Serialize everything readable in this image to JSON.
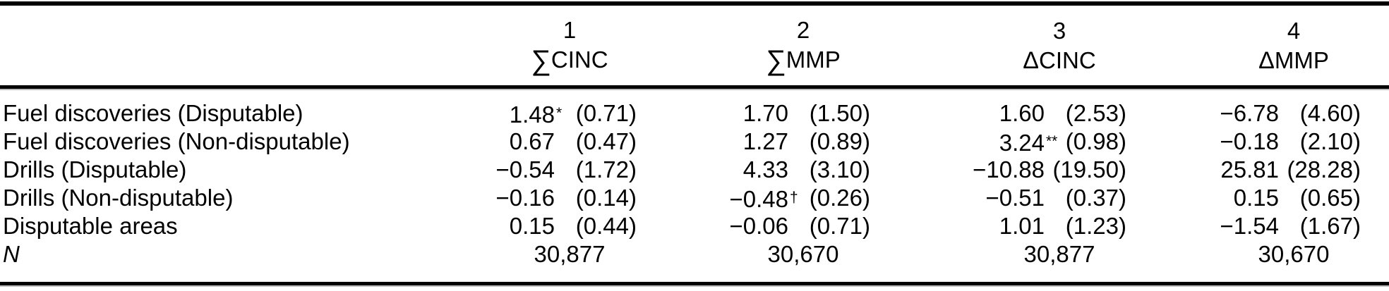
{
  "table": {
    "columns": [
      {
        "number": "1",
        "symbol": "∑",
        "name": "CINC"
      },
      {
        "number": "2",
        "symbol": "∑",
        "name": "MMP"
      },
      {
        "number": "3",
        "symbol": "Δ",
        "name": "CINC"
      },
      {
        "number": "4",
        "symbol": "Δ",
        "name": "MMP"
      }
    ],
    "rows": [
      {
        "label": "Fuel discoveries (Disputable)",
        "cells": [
          {
            "coef": "1.48",
            "sup": "*",
            "se": "(0.71)"
          },
          {
            "coef": "1.70",
            "se": "(1.50)"
          },
          {
            "coef": "1.60",
            "se": "(2.53)"
          },
          {
            "coef": "−6.78",
            "se": "(4.60)"
          }
        ]
      },
      {
        "label": "Fuel discoveries (Non-disputable)",
        "cells": [
          {
            "coef": "0.67",
            "se": "(0.47)"
          },
          {
            "coef": "1.27",
            "se": "(0.89)"
          },
          {
            "coef": "3.24",
            "sup": "**",
            "se": "(0.98)"
          },
          {
            "coef": "−0.18",
            "se": "(2.10)"
          }
        ]
      },
      {
        "label": "Drills (Disputable)",
        "cells": [
          {
            "coef": "−0.54",
            "se": "(1.72)"
          },
          {
            "coef": "4.33",
            "se": "(3.10)"
          },
          {
            "coef": "−10.88",
            "se": "(19.50)"
          },
          {
            "coef": "25.81",
            "se": "(28.28)"
          }
        ]
      },
      {
        "label": "Drills (Non-disputable)",
        "cells": [
          {
            "coef": "−0.16",
            "se": "(0.14)"
          },
          {
            "coef": "−0.48",
            "sup": "†",
            "se": "(0.26)"
          },
          {
            "coef": "−0.51",
            "se": "(0.37)"
          },
          {
            "coef": "0.15",
            "se": "(0.65)"
          }
        ]
      },
      {
        "label": "Disputable areas",
        "cells": [
          {
            "coef": "0.15",
            "se": "(0.44)"
          },
          {
            "coef": "−0.06",
            "se": "(0.71)"
          },
          {
            "coef": "1.01",
            "se": "(1.23)"
          },
          {
            "coef": "−1.54",
            "se": "(1.67)"
          }
        ]
      }
    ],
    "n_row": {
      "label": "N",
      "values": [
        "30,877",
        "30,670",
        "30,877",
        "30,670"
      ]
    }
  }
}
